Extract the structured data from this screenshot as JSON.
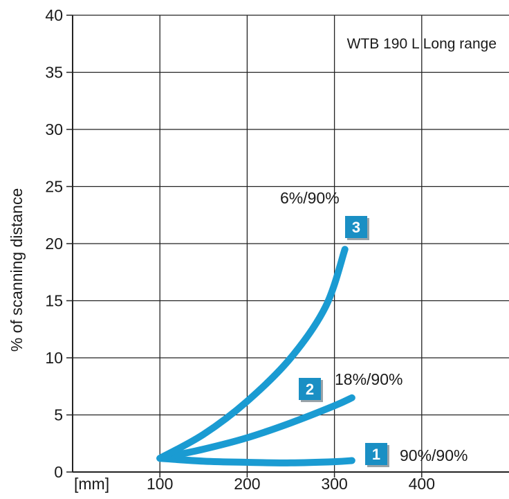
{
  "chart_data": {
    "type": "line",
    "title": "WTB 190 L Long range",
    "xlabel": "[mm]",
    "ylabel": "% of scanning distance",
    "xlim": [
      0,
      500
    ],
    "ylim": [
      0,
      40
    ],
    "xticks": [
      100,
      200,
      300,
      400
    ],
    "yticks": [
      0,
      5,
      10,
      15,
      20,
      25,
      30,
      35,
      40
    ],
    "grid": true,
    "series_color": "#1a9bd2",
    "badge_color": "#1a8fc4",
    "series": [
      {
        "badge": "1",
        "name": "90%/90%",
        "x": [
          100,
          150,
          200,
          250,
          300,
          320
        ],
        "y": [
          1.2,
          0.95,
          0.85,
          0.8,
          0.9,
          1.0
        ]
      },
      {
        "badge": "2",
        "name": "18%/90%",
        "x": [
          100,
          150,
          200,
          250,
          300,
          320
        ],
        "y": [
          1.2,
          2.0,
          3.0,
          4.3,
          5.8,
          6.5
        ]
      },
      {
        "badge": "3",
        "name": "6%/90%",
        "x": [
          100,
          150,
          200,
          250,
          290,
          312
        ],
        "y": [
          1.2,
          3.3,
          6.2,
          10.0,
          14.5,
          19.5
        ]
      }
    ]
  }
}
